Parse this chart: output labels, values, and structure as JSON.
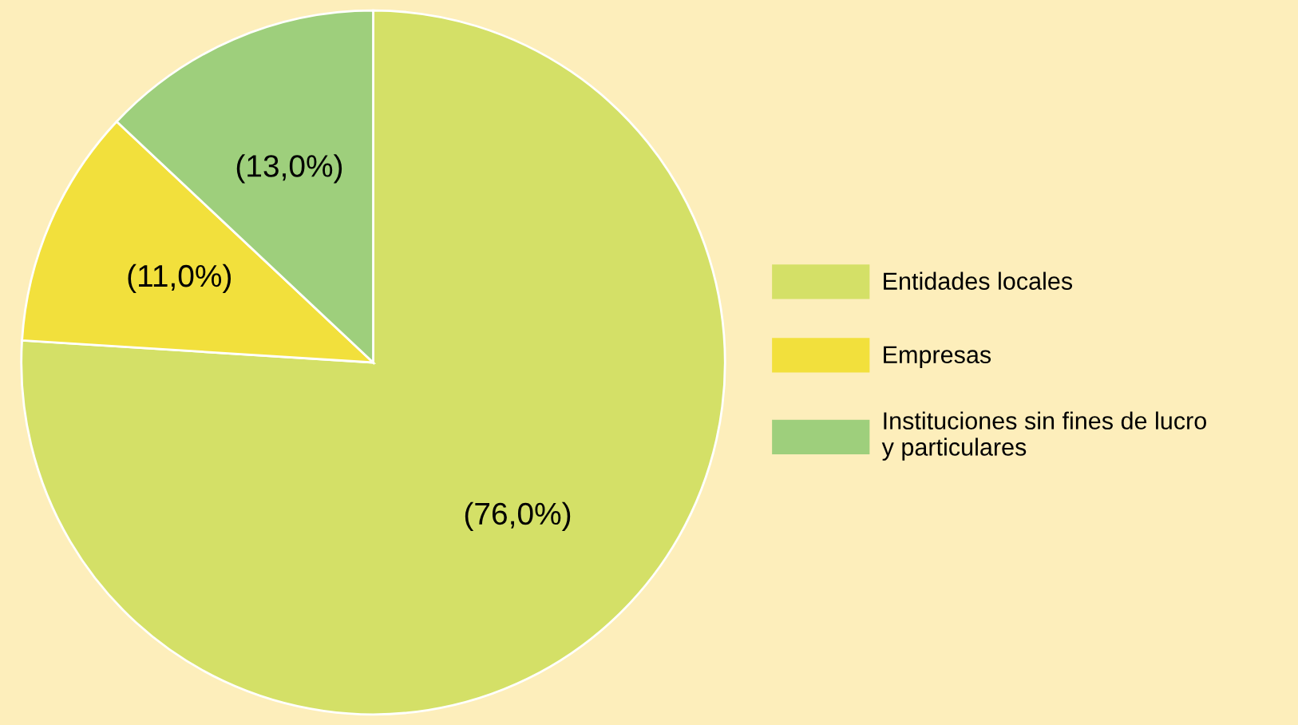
{
  "chart_data": {
    "type": "pie",
    "categories": [
      "Entidades locales",
      "Empresas",
      "Instituciones sin fines de lucro\ny particulares"
    ],
    "values": [
      76,
      11,
      13
    ],
    "colors": [
      "#d4e067",
      "#f2e03c",
      "#9ecf7c"
    ],
    "value_labels": [
      "(76,0%)",
      "(11,0%)",
      "(13,0%)"
    ],
    "legend": "right"
  }
}
